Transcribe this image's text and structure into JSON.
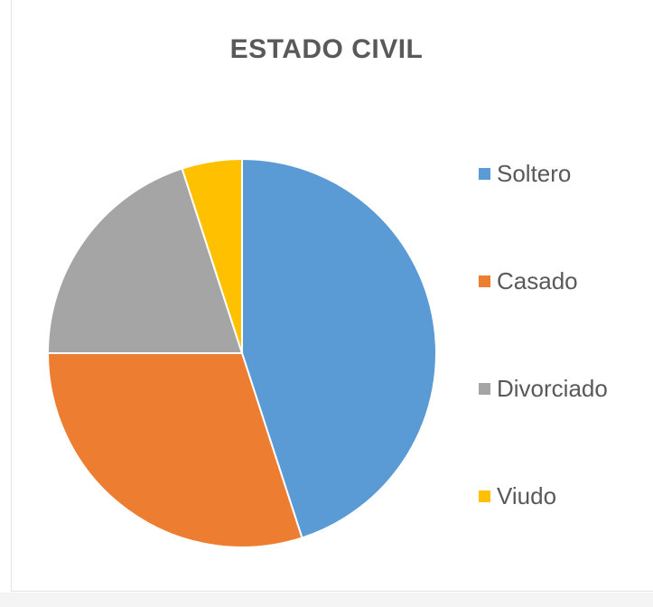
{
  "chart_data": {
    "type": "pie",
    "title": "ESTADO CIVIL",
    "categories": [
      "Soltero",
      "Casado",
      "Divorciado",
      "Viudo"
    ],
    "values": [
      45,
      30,
      20,
      5
    ],
    "colors": [
      "#5b9bd5",
      "#ed7d31",
      "#a5a5a5",
      "#ffc000"
    ],
    "legend_position": "right",
    "start_angle_deg": 0,
    "direction": "clockwise"
  }
}
